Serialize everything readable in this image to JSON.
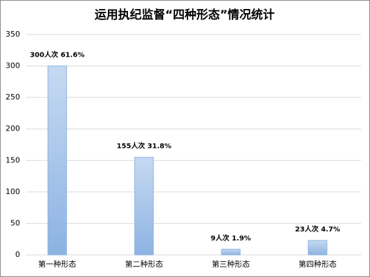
{
  "chart_data": {
    "type": "bar",
    "title": "运用执纪监督“四种形态”情况统计",
    "categories": [
      "第一种形态",
      "第二种形态",
      "第三种形态",
      "第四种形态"
    ],
    "values": [
      300,
      155,
      9,
      23
    ],
    "value_labels": [
      "300人次 61.6%",
      "155人次 31.8%",
      "9人次 1.9%",
      "23人次 4.7%"
    ],
    "color": "#8db3e2",
    "ylim": [
      0,
      350
    ],
    "yticks": [
      0,
      50,
      100,
      150,
      200,
      250,
      300,
      350
    ],
    "grid": true
  }
}
